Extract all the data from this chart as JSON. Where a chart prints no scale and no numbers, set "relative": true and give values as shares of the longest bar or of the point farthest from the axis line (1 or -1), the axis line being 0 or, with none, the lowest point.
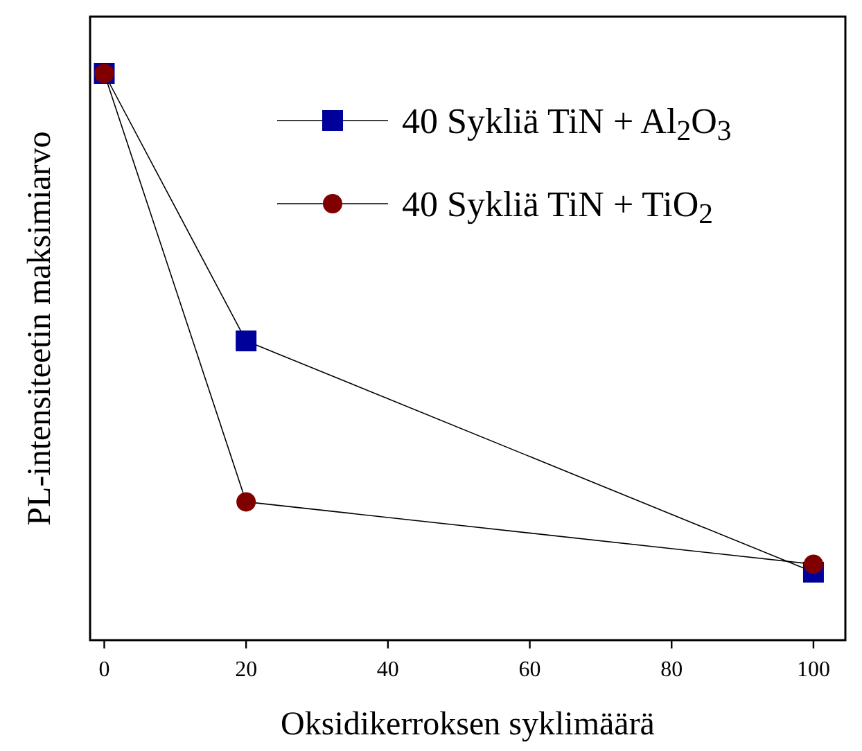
{
  "chart_data": {
    "type": "line",
    "xlabel": "Oksidikerroksen syklimäärä",
    "ylabel": "PL-intensiteetin maksimiarvo",
    "relative": true,
    "x": [
      0,
      20,
      100
    ],
    "xlim": [
      -2,
      104.5
    ],
    "xticks": [
      0,
      20,
      40,
      60,
      80,
      100
    ],
    "legend": "top right",
    "grid": false,
    "line_style": "solid",
    "series": [
      {
        "name": "40 Sykliä TiN + Al$_{2}$O$_{3}$",
        "color": "#00009b",
        "marker": "square",
        "values": [
          1,
          0.528,
          0.12
        ]
      },
      {
        "name": "40 Sykliä TiN + TiO$_{2}$",
        "color": "#800000",
        "marker": "circle",
        "values": [
          1,
          0.244,
          0.134
        ]
      }
    ]
  }
}
